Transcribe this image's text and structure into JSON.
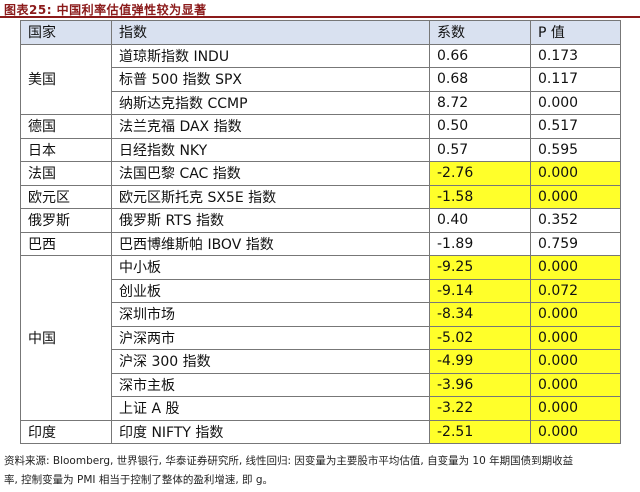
{
  "figure": {
    "title": "图表25:   中国利率估值弹性较为显著"
  },
  "table": {
    "headers": [
      "国家",
      "指数",
      "系数",
      "P 值"
    ],
    "groups": [
      {
        "country": "美国",
        "rows": [
          {
            "index": "道琼斯指数 INDU",
            "coef": "0.66",
            "p": "0.173",
            "highlight": false
          },
          {
            "index": "标普 500 指数 SPX",
            "coef": "0.68",
            "p": "0.117",
            "highlight": false
          },
          {
            "index": "纳斯达克指数 CCMP",
            "coef": "8.72",
            "p": "0.000",
            "highlight": false
          }
        ]
      },
      {
        "country": "德国",
        "rows": [
          {
            "index": "法兰克福 DAX 指数",
            "coef": "0.50",
            "p": "0.517",
            "highlight": false
          }
        ]
      },
      {
        "country": "日本",
        "rows": [
          {
            "index": "日经指数 NKY",
            "coef": "0.57",
            "p": "0.595",
            "highlight": false
          }
        ]
      },
      {
        "country": "法国",
        "rows": [
          {
            "index": "法国巴黎 CAC 指数",
            "coef": "-2.76",
            "p": "0.000",
            "highlight": true
          }
        ]
      },
      {
        "country": "欧元区",
        "rows": [
          {
            "index": "欧元区斯托克 SX5E 指数",
            "coef": "-1.58",
            "p": "0.000",
            "highlight": true
          }
        ]
      },
      {
        "country": "俄罗斯",
        "rows": [
          {
            "index": "俄罗斯 RTS 指数",
            "coef": "0.40",
            "p": "0.352",
            "highlight": false
          }
        ]
      },
      {
        "country": "巴西",
        "rows": [
          {
            "index": "巴西博维斯帕 IBOV 指数",
            "coef": "-1.89",
            "p": "0.759",
            "highlight": false
          }
        ]
      },
      {
        "country": "中国",
        "rows": [
          {
            "index": "中小板",
            "coef": "-9.25",
            "p": "0.000",
            "highlight": true
          },
          {
            "index": "创业板",
            "coef": "-9.14",
            "p": "0.072",
            "highlight": true
          },
          {
            "index": "深圳市场",
            "coef": "-8.34",
            "p": "0.000",
            "highlight": true
          },
          {
            "index": "沪深两市",
            "coef": "-5.02",
            "p": "0.000",
            "highlight": true
          },
          {
            "index": "沪深 300 指数",
            "coef": "-4.99",
            "p": "0.000",
            "highlight": true
          },
          {
            "index": "深市主板",
            "coef": "-3.96",
            "p": "0.000",
            "highlight": true
          },
          {
            "index": "上证 A 股",
            "coef": "-3.22",
            "p": "0.000",
            "highlight": true
          }
        ]
      },
      {
        "country": "印度",
        "rows": [
          {
            "index": "印度 NIFTY 指数",
            "coef": "-2.51",
            "p": "0.000",
            "highlight": true
          }
        ]
      }
    ]
  },
  "source": {
    "line1": "资料来源: Bloomberg, 世界银行, 华泰证券研究所, 线性回归: 因变量为主要股市平均估值, 自变量为 10 年期国债到期收益",
    "line2": "率, 控制变量为 PMI 相当于控制了整体的盈利增速, 即 g。"
  }
}
